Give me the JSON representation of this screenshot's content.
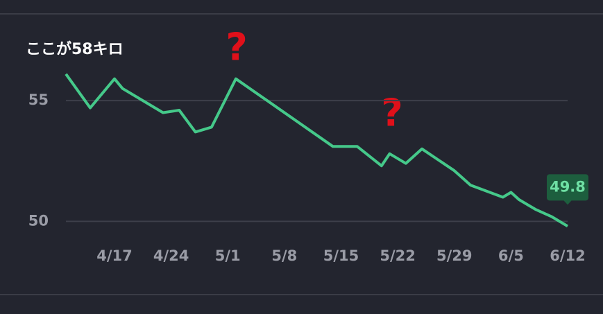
{
  "chart_data": {
    "type": "line",
    "annotations": [
      "ここが58キロ",
      "?",
      "?"
    ],
    "x": [
      "4/11",
      "4/14",
      "4/17",
      "4/18",
      "4/23",
      "4/25",
      "4/27",
      "4/29",
      "5/2",
      "5/14",
      "5/17",
      "5/20",
      "5/21",
      "5/23",
      "5/25",
      "5/29",
      "5/31",
      "6/4",
      "6/5",
      "6/6",
      "6/8",
      "6/10",
      "6/12"
    ],
    "series": [
      {
        "color": "#45c98a",
        "values": [
          56.1,
          54.7,
          55.9,
          55.5,
          54.5,
          54.6,
          53.7,
          53.9,
          55.9,
          53.1,
          53.1,
          52.3,
          52.8,
          52.4,
          53.0,
          52.1,
          51.5,
          51.0,
          51.2,
          50.9,
          50.5,
          50.2,
          49.8
        ]
      }
    ],
    "xlim": [
      "4/11",
      "6/12"
    ],
    "xticks": [
      "4/17",
      "4/24",
      "5/1",
      "5/8",
      "5/15",
      "5/22",
      "5/29",
      "6/5",
      "6/12"
    ],
    "ylim": [
      49,
      57
    ],
    "yticks": [
      50,
      55
    ],
    "grid": true
  }
}
